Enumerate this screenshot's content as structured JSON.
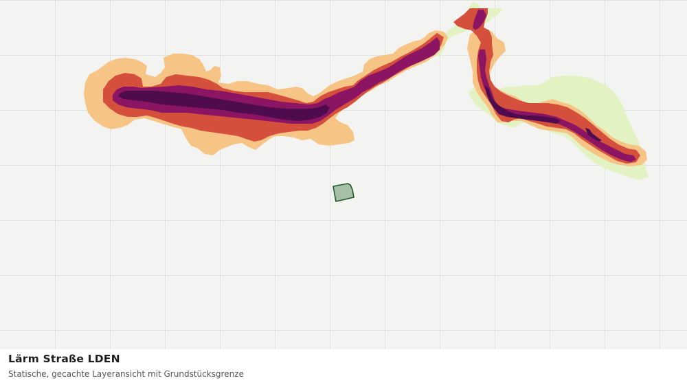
{
  "map": {
    "title": "Lärm Straße LDEN",
    "subtitle": "Statische, gecachte Layeransicht mit Grundstücksgrenze",
    "noise_class_colors": {
      "lowest": "#e3f2c2",
      "low": "#f6c585",
      "medium": "#d4503d",
      "high": "#8b1563",
      "highest": "#4e0c4f"
    },
    "parcel": {
      "fill": "#a6c0a6",
      "stroke": "#1e5a2a"
    },
    "background": "#f3f4f2",
    "grid_color": "#dfe1df"
  }
}
